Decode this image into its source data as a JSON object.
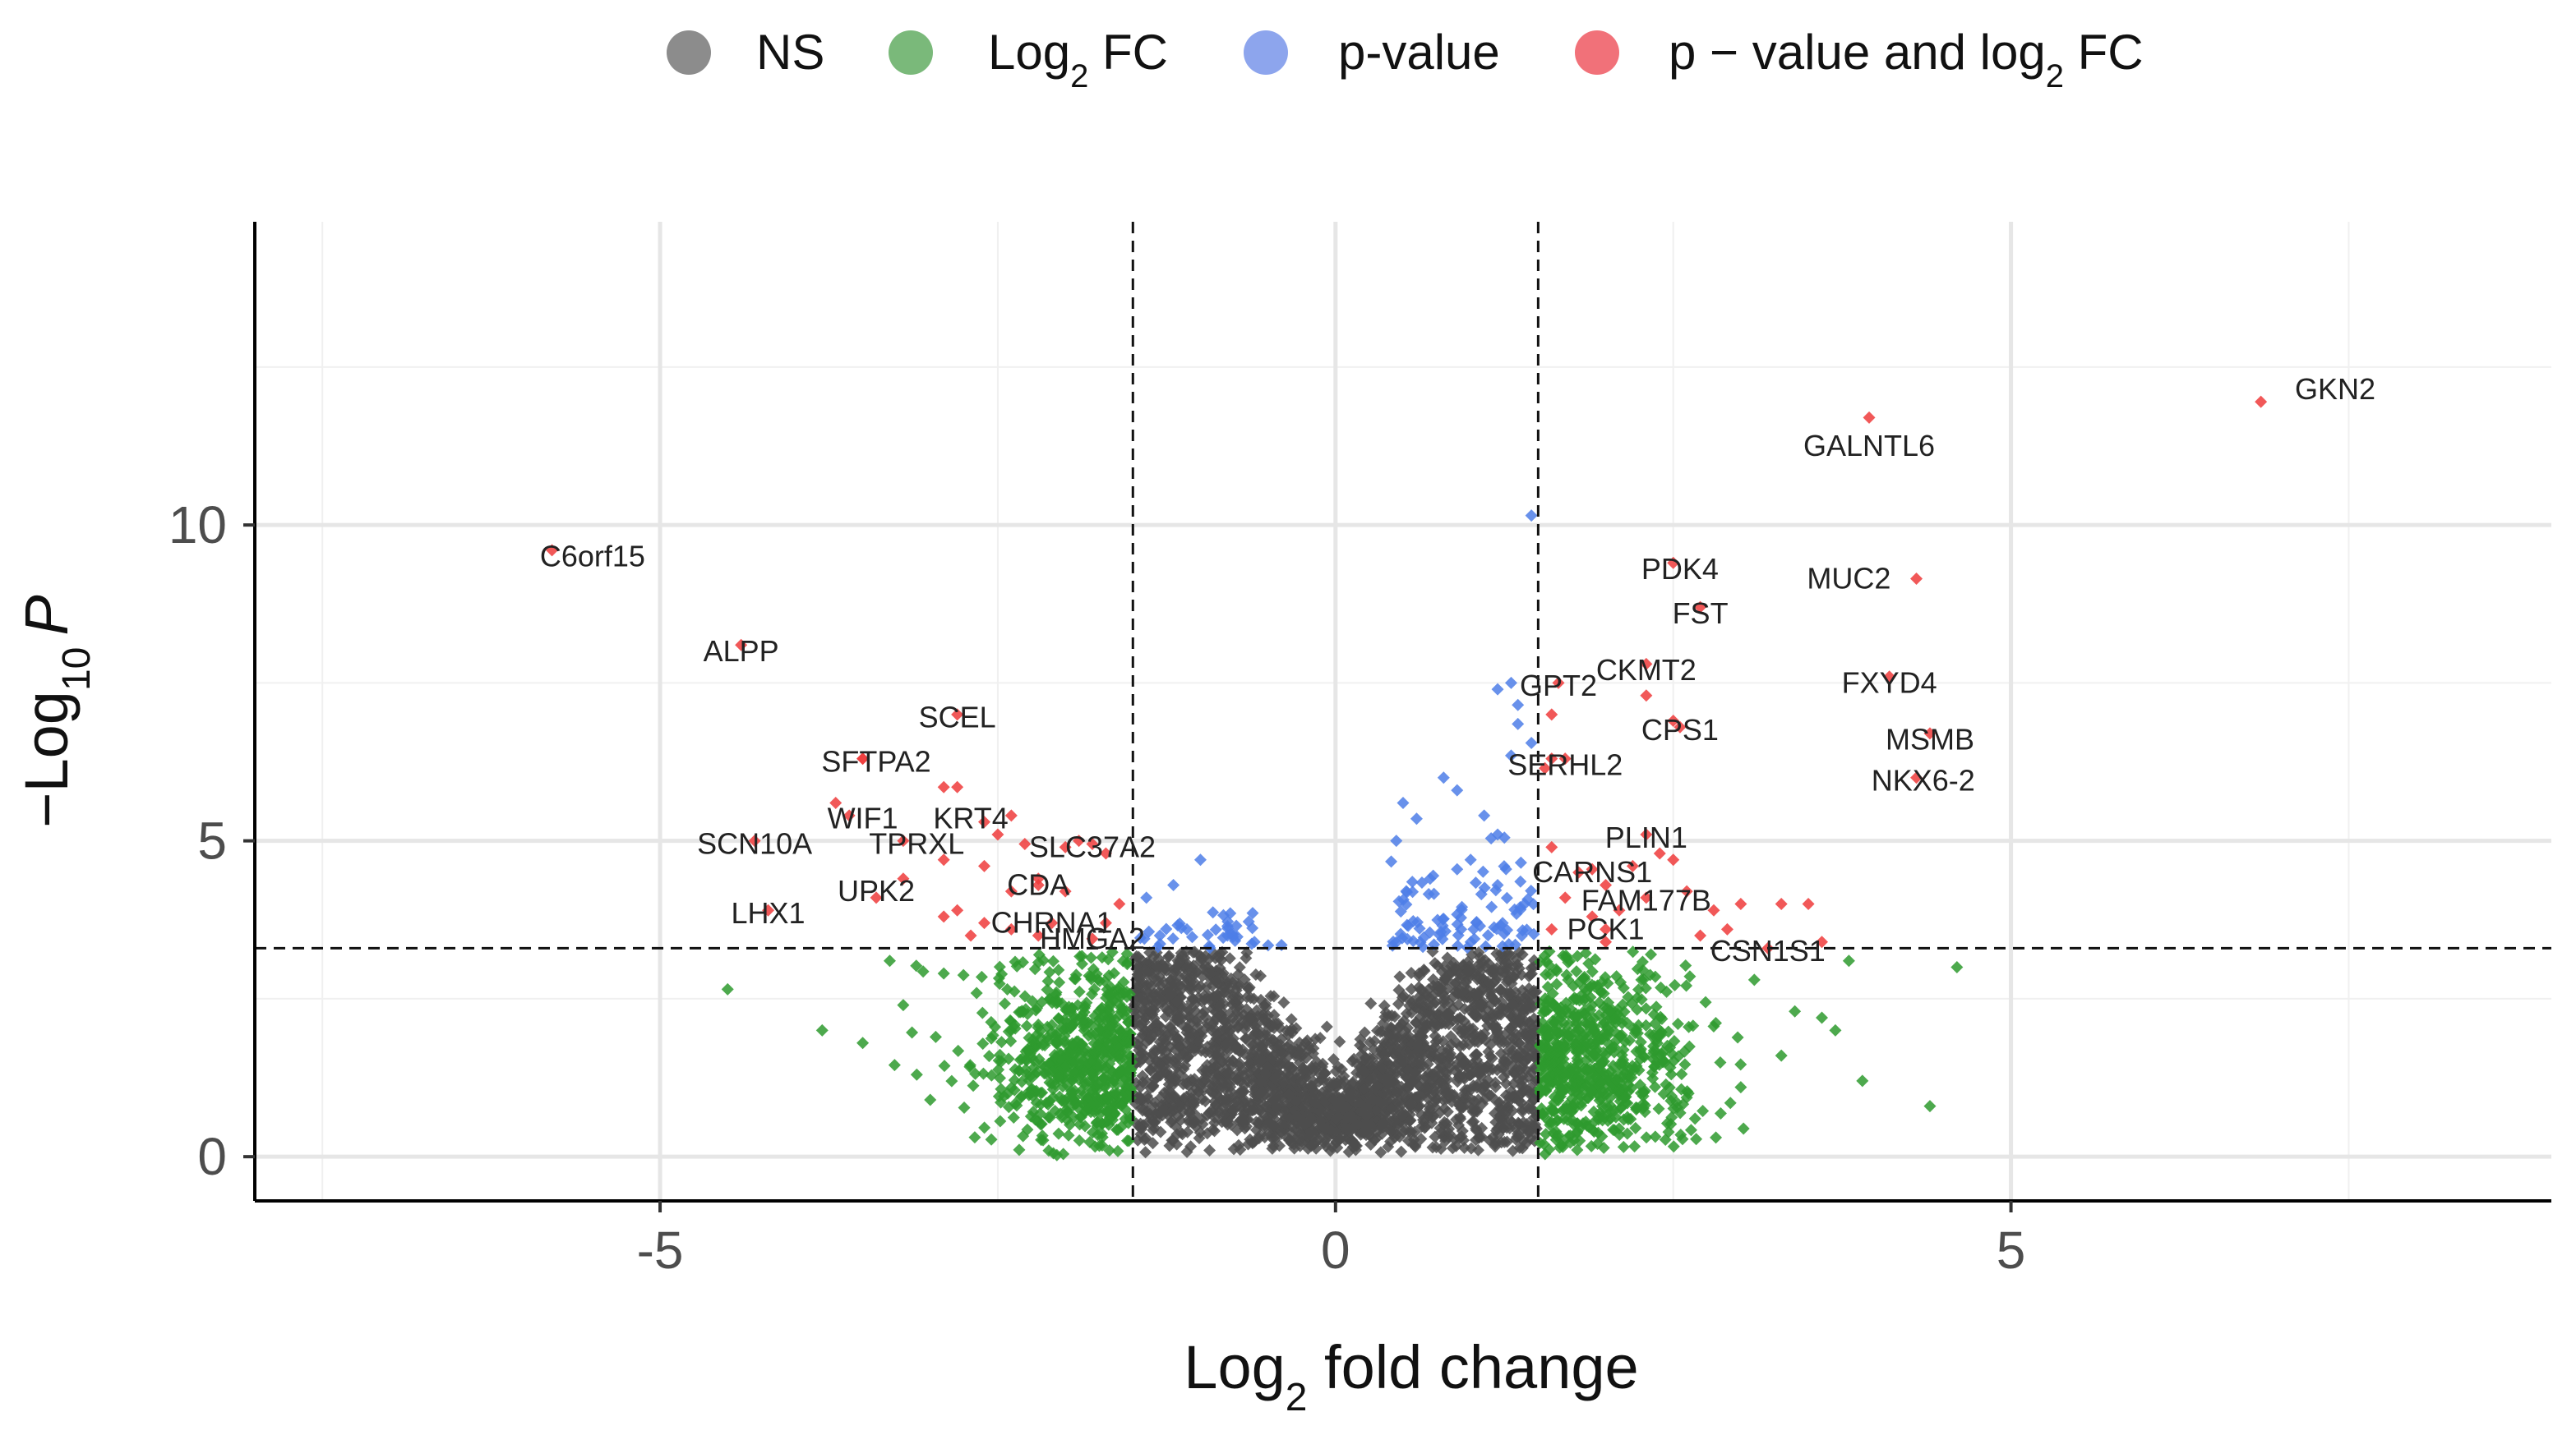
{
  "chart_data": {
    "type": "scatter",
    "title": "",
    "xlabel": {
      "base": "Log",
      "sub": "2",
      "rest": " fold change"
    },
    "ylabel": {
      "prefix": "−Log",
      "sub": "10",
      "italic": "P"
    },
    "xlim": [
      -8.0,
      9.0
    ],
    "ylim": [
      -0.7,
      14.8
    ],
    "xticks": [
      -5,
      0,
      5
    ],
    "xtick_labels": [
      "-5",
      "0",
      "5"
    ],
    "yticks": [
      0,
      5,
      10
    ],
    "ytick_labels": [
      "0",
      "5",
      "10"
    ],
    "grid": true,
    "legend_position": "top",
    "cutoffs": {
      "log2fc": 1.5,
      "neg_log10_p": 3.3
    },
    "legend": [
      {
        "key": "ns",
        "color": "#404040",
        "parts": [
          {
            "t": "NS"
          }
        ]
      },
      {
        "key": "fc",
        "color": "#228B22",
        "parts": [
          {
            "t": "Log"
          },
          {
            "t": "2",
            "sub": true
          },
          {
            "t": " FC"
          }
        ]
      },
      {
        "key": "p",
        "color": "#4169E1",
        "parts": [
          {
            "t": "p-value"
          }
        ]
      },
      {
        "key": "both",
        "color": "#E8131F",
        "parts": [
          {
            "t": "p − value and log"
          },
          {
            "t": "2",
            "sub": true
          },
          {
            "t": " FC"
          }
        ]
      }
    ],
    "colors": {
      "ns": "#4d4d4d",
      "fc": "#2e9a2e",
      "p": "#4d7ee8",
      "both": "#ee3b3b"
    },
    "labeled_genes": [
      {
        "gene": "GKN2",
        "x": 6.85,
        "y": 11.95
      },
      {
        "gene": "GALNTL6",
        "x": 3.95,
        "y": 11.7
      },
      {
        "gene": "C6orf15",
        "x": -5.8,
        "y": 9.6
      },
      {
        "gene": "PDK4",
        "x": 2.5,
        "y": 9.4
      },
      {
        "gene": "MUC2",
        "x": 4.3,
        "y": 9.15
      },
      {
        "gene": "FST",
        "x": 2.7,
        "y": 8.7
      },
      {
        "gene": "ALPP",
        "x": -4.4,
        "y": 8.1
      },
      {
        "gene": "CKMT2",
        "x": 2.3,
        "y": 7.8
      },
      {
        "gene": "FXYD4",
        "x": 4.1,
        "y": 7.6
      },
      {
        "gene": "GPT2",
        "x": 1.65,
        "y": 7.5
      },
      {
        "gene": "SCEL",
        "x": -2.8,
        "y": 7.0
      },
      {
        "gene": "CPS1",
        "x": 2.55,
        "y": 6.8
      },
      {
        "gene": "MSMB",
        "x": 4.4,
        "y": 6.7
      },
      {
        "gene": "SFTPA2",
        "x": -3.5,
        "y": 6.3
      },
      {
        "gene": "SERHL2",
        "x": 1.6,
        "y": 6.3
      },
      {
        "gene": "NKX6-2",
        "x": 4.3,
        "y": 6.0
      },
      {
        "gene": "KRT4",
        "x": -2.4,
        "y": 5.4
      },
      {
        "gene": "WIF1",
        "x": -3.6,
        "y": 5.4
      },
      {
        "gene": "PLIN1",
        "x": 2.3,
        "y": 5.1
      },
      {
        "gene": "SCN10A",
        "x": -4.3,
        "y": 5.0
      },
      {
        "gene": "TPRXL",
        "x": -3.2,
        "y": 5.0
      },
      {
        "gene": "SLC37A2",
        "x": -1.8,
        "y": 4.95
      },
      {
        "gene": "CARNS1",
        "x": 1.9,
        "y": 4.55
      },
      {
        "gene": "CDA",
        "x": -2.2,
        "y": 4.3
      },
      {
        "gene": "FAM177B",
        "x": 2.3,
        "y": 4.1
      },
      {
        "gene": "UPK2",
        "x": -3.4,
        "y": 4.1
      },
      {
        "gene": "LHX1",
        "x": -4.2,
        "y": 3.9
      },
      {
        "gene": "CHRNA1",
        "x": -2.1,
        "y": 3.7
      },
      {
        "gene": "PCK1",
        "x": 2.0,
        "y": 3.6
      },
      {
        "gene": "HMGA2",
        "x": -1.8,
        "y": 3.45
      },
      {
        "gene": "CSN1S1",
        "x": 3.2,
        "y": 3.3
      }
    ],
    "label_offsets": {
      "GKN2": [
        0.55,
        0.2
      ],
      "GALNTL6": [
        0.0,
        -0.45
      ],
      "C6orf15": [
        0.3,
        -0.1
      ],
      "PDK4": [
        0.05,
        -0.1
      ],
      "MUC2": [
        -0.5,
        0.0
      ],
      "FST": [
        0.0,
        -0.1
      ],
      "ALPP": [
        0.0,
        -0.1
      ],
      "CKMT2": [
        0.0,
        -0.1
      ],
      "FXYD4": [
        0.0,
        -0.1
      ],
      "GPT2": [
        0.0,
        -0.05
      ],
      "SCEL": [
        0.0,
        -0.05
      ],
      "CPS1": [
        0.0,
        -0.05
      ],
      "MSMB": [
        0.0,
        -0.1
      ],
      "SFTPA2": [
        0.1,
        -0.05
      ],
      "SERHL2": [
        0.1,
        -0.1
      ],
      "NKX6-2": [
        0.05,
        -0.05
      ],
      "KRT4": [
        -0.3,
        -0.05
      ],
      "WIF1": [
        0.1,
        -0.05
      ],
      "PLIN1": [
        0.0,
        -0.05
      ],
      "SCN10A": [
        0.0,
        -0.05
      ],
      "TPRXL": [
        0.1,
        -0.05
      ],
      "SLC37A2": [
        0.0,
        -0.05
      ],
      "CARNS1": [
        0.0,
        -0.05
      ],
      "CDA": [
        0.0,
        0.0
      ],
      "FAM177B": [
        0.0,
        -0.05
      ],
      "UPK2": [
        0.0,
        0.1
      ],
      "LHX1": [
        0.0,
        -0.05
      ],
      "CHRNA1": [
        0.0,
        0.0
      ],
      "PCK1": [
        0.0,
        0.0
      ],
      "HMGA2": [
        0.0,
        0.0
      ],
      "CSN1S1": [
        0.0,
        -0.05
      ]
    },
    "extra_significant_points": [
      [
        -2.8,
        5.85
      ],
      [
        -2.9,
        5.85
      ],
      [
        -2.6,
        5.3
      ],
      [
        -2.5,
        5.1
      ],
      [
        -2.3,
        4.95
      ],
      [
        -2.0,
        4.9
      ],
      [
        -1.9,
        5.0
      ],
      [
        -1.7,
        4.8
      ],
      [
        -2.6,
        4.6
      ],
      [
        -2.9,
        4.7
      ],
      [
        -2.4,
        4.2
      ],
      [
        -2.2,
        4.4
      ],
      [
        -2.0,
        4.2
      ],
      [
        -2.8,
        3.9
      ],
      [
        -2.6,
        3.7
      ],
      [
        -2.4,
        3.6
      ],
      [
        -2.9,
        3.8
      ],
      [
        -3.2,
        4.4
      ],
      [
        -3.5,
        6.3
      ],
      [
        -3.7,
        5.6
      ],
      [
        -1.6,
        4.0
      ],
      [
        -1.7,
        3.7
      ],
      [
        -2.2,
        3.5
      ],
      [
        -2.7,
        3.5
      ],
      [
        1.6,
        7.0
      ],
      [
        1.55,
        6.15
      ],
      [
        1.7,
        6.3
      ],
      [
        1.6,
        4.9
      ],
      [
        1.8,
        4.5
      ],
      [
        2.0,
        4.3
      ],
      [
        2.2,
        4.6
      ],
      [
        2.4,
        4.8
      ],
      [
        2.5,
        4.7
      ],
      [
        2.6,
        4.2
      ],
      [
        2.8,
        3.9
      ],
      [
        3.0,
        4.0
      ],
      [
        3.3,
        4.0
      ],
      [
        3.5,
        4.0
      ],
      [
        2.9,
        3.6
      ],
      [
        2.7,
        3.5
      ],
      [
        2.0,
        3.4
      ],
      [
        1.6,
        3.6
      ],
      [
        1.9,
        3.8
      ],
      [
        2.1,
        3.9
      ],
      [
        3.6,
        3.4
      ],
      [
        2.3,
        7.3
      ],
      [
        2.5,
        6.9
      ],
      [
        1.7,
        4.1
      ]
    ],
    "extra_pvalue_points": [
      [
        1.45,
        10.15
      ],
      [
        1.3,
        7.5
      ],
      [
        1.2,
        7.4
      ],
      [
        1.35,
        7.15
      ],
      [
        1.35,
        6.85
      ],
      [
        1.3,
        6.35
      ],
      [
        1.45,
        6.55
      ],
      [
        0.8,
        6.0
      ],
      [
        0.9,
        5.8
      ],
      [
        0.5,
        5.6
      ],
      [
        0.6,
        5.35
      ],
      [
        1.1,
        5.4
      ],
      [
        1.2,
        5.1
      ],
      [
        0.45,
        5.0
      ],
      [
        1.0,
        4.7
      ],
      [
        0.9,
        4.55
      ],
      [
        0.7,
        4.4
      ],
      [
        1.2,
        4.3
      ],
      [
        1.4,
        4.0
      ],
      [
        -1.0,
        4.7
      ],
      [
        -1.2,
        4.3
      ],
      [
        -1.4,
        4.1
      ],
      [
        -1.1,
        3.6
      ],
      [
        -0.8,
        3.5
      ],
      [
        -0.4,
        3.35
      ],
      [
        -1.3,
        3.5
      ],
      [
        -0.6,
        3.4
      ],
      [
        1.25,
        5.05
      ]
    ],
    "extra_fc_points": [
      [
        -4.5,
        2.65
      ],
      [
        -3.8,
        2.0
      ],
      [
        -3.5,
        1.8
      ],
      [
        -3.2,
        2.4
      ],
      [
        4.6,
        3.0
      ],
      [
        4.4,
        0.8
      ],
      [
        3.8,
        3.1
      ],
      [
        3.6,
        2.2
      ],
      [
        3.7,
        2.0
      ],
      [
        3.3,
        1.6
      ],
      [
        -3.1,
        1.3
      ],
      [
        -3.0,
        0.9
      ],
      [
        3.9,
        1.2
      ],
      [
        -2.9,
        2.9
      ],
      [
        3.4,
        2.3
      ],
      [
        3.0,
        1.1
      ],
      [
        -3.3,
        3.1
      ],
      [
        3.1,
        2.8
      ]
    ],
    "simulation": {
      "n_ns": 2600,
      "n_fc": 1300,
      "n_p": 120,
      "seed": 7
    }
  }
}
